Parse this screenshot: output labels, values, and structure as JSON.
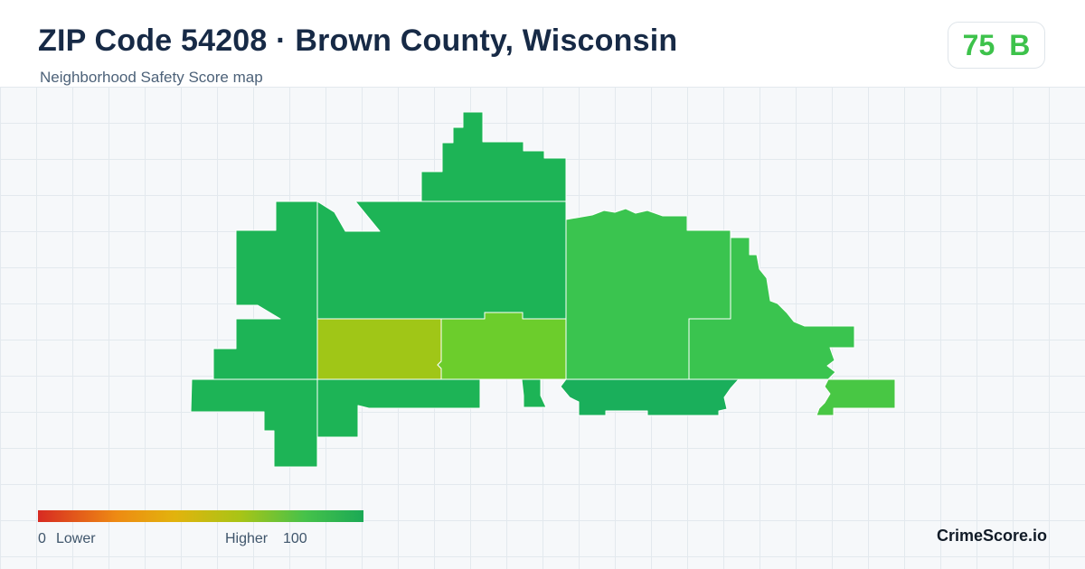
{
  "header": {
    "title": "ZIP Code 54208 · Brown County, Wisconsin",
    "subtitle": "Neighborhood Safety Score map"
  },
  "score_badge": {
    "score": "75",
    "grade": "B",
    "color": "#3dc24b"
  },
  "legend": {
    "min_label": "0",
    "low_label": "Lower",
    "high_label": "Higher",
    "max_label": "100",
    "gradient_colors": [
      "#d72a22",
      "#ee8a13",
      "#e2b30d",
      "#a9c416",
      "#46c24a",
      "#1ba955"
    ]
  },
  "brand": "CrimeScore.io",
  "map": {
    "color_scale": {
      "low": "#d72a22",
      "mid": "#e2b30d",
      "high": "#1ba955"
    },
    "zone_colors": {
      "dark_green": "#1db456",
      "green": "#3ac44f",
      "mid_green": "#1aaf5b",
      "light_green": "#48c744",
      "lime": "#6ccd2c",
      "olive": "#a0c617"
    }
  }
}
